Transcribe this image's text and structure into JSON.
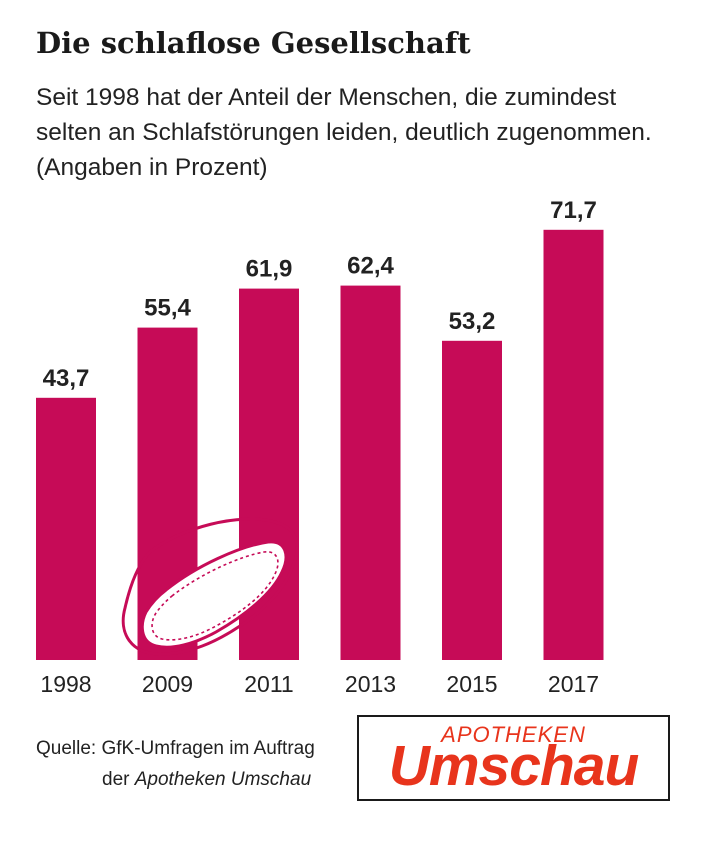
{
  "title": "Die schlaflose Gesellschaft",
  "subtitle_lines": [
    "Seit 1998 hat der Anteil der Menschen, die zumindest",
    "selten an Schlafstörungen leiden, deutlich zugenommen.",
    "(Angaben in Prozent)"
  ],
  "colors": {
    "bar": "#c60b57",
    "logo_red": "#e8341c",
    "mask_outline": "#c60b57"
  },
  "icons": {
    "mask": "sleep-mask-icon"
  },
  "chart_data": {
    "type": "bar",
    "categories": [
      "1998",
      "2009",
      "2011",
      "2013",
      "2015",
      "2017"
    ],
    "values": [
      43.7,
      55.4,
      61.9,
      62.4,
      53.2,
      71.7
    ],
    "value_labels": [
      "43,7",
      "55,4",
      "61,9",
      "62,4",
      "53,2",
      "71,7"
    ],
    "ylim": [
      0,
      100
    ],
    "grid": false,
    "legend": "none"
  },
  "source": {
    "line1": "Quelle: GfK-Umfragen im Auftrag",
    "line2_prefix": "der ",
    "line2_italic": "Apotheken Umschau"
  },
  "logo": {
    "top": "APOTHEKEN",
    "main": "Umschau"
  }
}
